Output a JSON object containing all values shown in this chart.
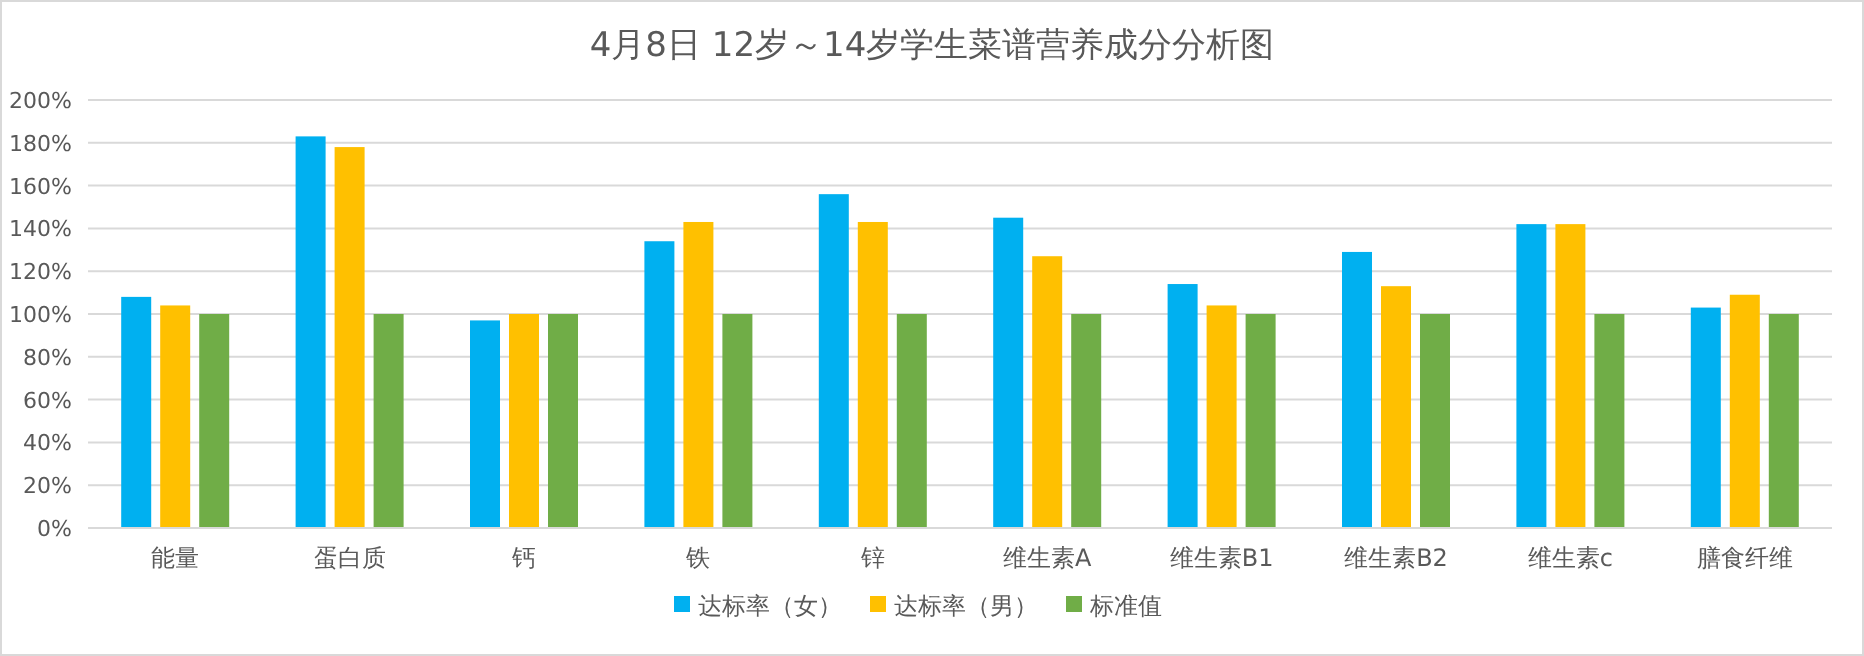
{
  "chart_data": {
    "type": "bar",
    "title": "4月8日 12岁～14岁学生菜谱营养成分分析图",
    "categories": [
      "能量",
      "蛋白质",
      "钙",
      "铁",
      "锌",
      "维生素A",
      "维生素B1",
      "维生素B2",
      "维生素c",
      "膳食纤维"
    ],
    "series": [
      {
        "name": "达标率（女）",
        "color": "#00b0f0",
        "values": [
          108,
          183,
          97,
          134,
          156,
          145,
          114,
          129,
          142,
          103
        ]
      },
      {
        "name": "达标率（男）",
        "color": "#ffc000",
        "values": [
          104,
          178,
          100,
          143,
          143,
          127,
          104,
          113,
          142,
          109
        ]
      },
      {
        "name": "标准值",
        "color": "#70ad47",
        "values": [
          100,
          100,
          100,
          100,
          100,
          100,
          100,
          100,
          100,
          100
        ]
      }
    ],
    "ylim": [
      0,
      200
    ],
    "yticks": [
      {
        "value": 0,
        "label": "0%"
      },
      {
        "value": 20,
        "label": "20%"
      },
      {
        "value": 40,
        "label": "40%"
      },
      {
        "value": 60,
        "label": "60%"
      },
      {
        "value": 80,
        "label": "80%"
      },
      {
        "value": 100,
        "label": "100%"
      },
      {
        "value": 120,
        "label": "120%"
      },
      {
        "value": 140,
        "label": "140%"
      },
      {
        "value": 160,
        "label": "160%"
      },
      {
        "value": 180,
        "label": "180%"
      },
      {
        "value": 200,
        "label": "200%"
      }
    ],
    "grid": "y",
    "legend": "bottom"
  }
}
